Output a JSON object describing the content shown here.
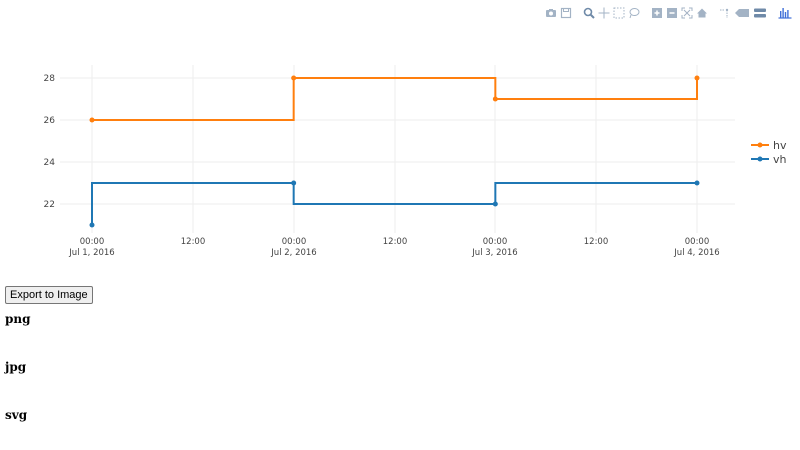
{
  "modebar": {
    "buttons": [
      {
        "name": "camera-icon",
        "title": "Download plot as a png"
      },
      {
        "name": "save-icon",
        "title": "Save and edit plot in cloud"
      },
      {
        "name": "zoom-icon",
        "title": "Zoom"
      },
      {
        "name": "pan-icon",
        "title": "Pan"
      },
      {
        "name": "box-select-icon",
        "title": "Box Select"
      },
      {
        "name": "lasso-select-icon",
        "title": "Lasso Select"
      },
      {
        "name": "zoom-in-icon",
        "title": "Zoom in"
      },
      {
        "name": "zoom-out-icon",
        "title": "Zoom out"
      },
      {
        "name": "autoscale-icon",
        "title": "Autoscale"
      },
      {
        "name": "home-icon",
        "title": "Reset axes"
      },
      {
        "name": "spikelines-icon",
        "title": "Toggle Spike Lines"
      },
      {
        "name": "hover-closest-icon",
        "title": "Show closest data on hover"
      },
      {
        "name": "hover-compare-icon",
        "title": "Compare data on hover"
      },
      {
        "name": "plotly-logo-icon",
        "title": "Produced with Plotly"
      }
    ]
  },
  "chart_data": {
    "type": "line",
    "title": "",
    "xlabel": "",
    "ylabel": "",
    "x": [
      "2016-07-01",
      "2016-07-02",
      "2016-07-03",
      "2016-07-04"
    ],
    "series": [
      {
        "name": "hv",
        "line_shape": "hv",
        "color": "#ff7f0e",
        "values": [
          26,
          28,
          27,
          28
        ]
      },
      {
        "name": "vh",
        "line_shape": "vh",
        "color": "#1f77b4",
        "values": [
          21,
          23,
          22,
          23
        ]
      }
    ],
    "x_ticks": [
      {
        "line1": "00:00",
        "line2": "Jul 1, 2016"
      },
      {
        "line1": "12:00",
        "line2": ""
      },
      {
        "line1": "00:00",
        "line2": "Jul 2, 2016"
      },
      {
        "line1": "12:00",
        "line2": ""
      },
      {
        "line1": "00:00",
        "line2": "Jul 3, 2016"
      },
      {
        "line1": "12:00",
        "line2": ""
      },
      {
        "line1": "00:00",
        "line2": "Jul 4, 2016"
      }
    ],
    "y_ticks": [
      "22",
      "24",
      "26",
      "28"
    ],
    "ylim": [
      20.6,
      28.6
    ],
    "grid": true,
    "legend_position": "right"
  },
  "legend": {
    "items": [
      {
        "label": "hv",
        "color": "#ff7f0e"
      },
      {
        "label": "vh",
        "color": "#1f77b4"
      }
    ]
  },
  "export": {
    "button_label": "Export to Image",
    "formats": [
      "png",
      "jpg",
      "svg"
    ]
  }
}
